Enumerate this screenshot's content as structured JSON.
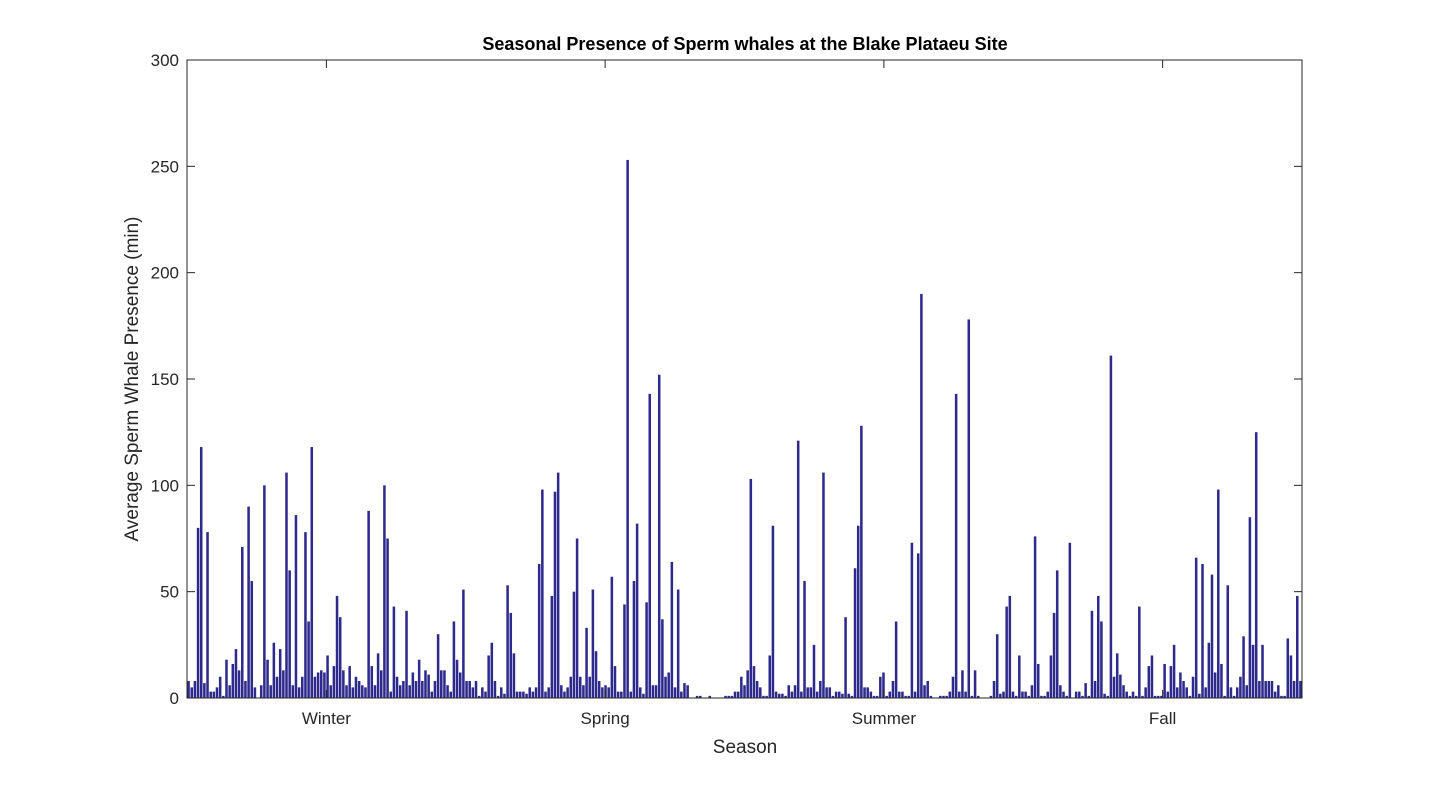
{
  "chart_data": {
    "type": "bar",
    "title": "Seasonal Presence of Sperm whales at the Blake Plataeu Site",
    "xlabel": "Season",
    "ylabel": "Average Sperm Whale Presence (min)",
    "ylim": [
      0,
      300
    ],
    "yticks": [
      0,
      50,
      100,
      150,
      200,
      250,
      300
    ],
    "xticks": [
      "Winter",
      "Spring",
      "Summer",
      "Fall"
    ],
    "grid": false,
    "legend": "none",
    "bar_color": "#2e2a8c",
    "axis_color": "#262626",
    "values": [
      8,
      5,
      8,
      80,
      118,
      7,
      78,
      3,
      3,
      5,
      10,
      1,
      18,
      6,
      16,
      23,
      13,
      71,
      8,
      90,
      55,
      5,
      0,
      6,
      100,
      18,
      6,
      26,
      10,
      23,
      13,
      106,
      60,
      6,
      86,
      5,
      10,
      78,
      36,
      118,
      10,
      12,
      13,
      12,
      20,
      6,
      15,
      48,
      38,
      13,
      6,
      15,
      5,
      10,
      8,
      6,
      5,
      88,
      15,
      6,
      21,
      13,
      100,
      75,
      3,
      43,
      10,
      6,
      8,
      41,
      6,
      12,
      8,
      18,
      8,
      13,
      11,
      3,
      8,
      30,
      13,
      13,
      6,
      3,
      36,
      18,
      12,
      51,
      8,
      8,
      5,
      8,
      1,
      5,
      3,
      20,
      26,
      8,
      1,
      5,
      2,
      53,
      40,
      21,
      3,
      3,
      3,
      2,
      5,
      3,
      5,
      63,
      98,
      3,
      5,
      48,
      97,
      106,
      6,
      3,
      5,
      10,
      50,
      75,
      10,
      6,
      33,
      10,
      51,
      22,
      8,
      5,
      6,
      5,
      57,
      15,
      3,
      3,
      44,
      253,
      3,
      55,
      82,
      5,
      2,
      45,
      143,
      6,
      6,
      152,
      37,
      10,
      12,
      64,
      5,
      51,
      3,
      7,
      6,
      0,
      0,
      1,
      1,
      0,
      0,
      1,
      0,
      0,
      0,
      0,
      1,
      1,
      1,
      3,
      3,
      10,
      6,
      13,
      103,
      15,
      8,
      5,
      1,
      1,
      20,
      81,
      3,
      2,
      2,
      1,
      6,
      3,
      6,
      121,
      3,
      55,
      5,
      5,
      25,
      3,
      8,
      106,
      5,
      5,
      1,
      3,
      3,
      2,
      38,
      2,
      1,
      61,
      81,
      128,
      5,
      5,
      3,
      1,
      1,
      10,
      12,
      1,
      3,
      8,
      36,
      3,
      3,
      1,
      1,
      73,
      3,
      68,
      190,
      6,
      8,
      1,
      0,
      0,
      1,
      1,
      1,
      3,
      10,
      143,
      3,
      13,
      3,
      178,
      1,
      13,
      1,
      0,
      0,
      0,
      1,
      8,
      30,
      2,
      3,
      43,
      48,
      3,
      1,
      20,
      3,
      3,
      1,
      6,
      76,
      16,
      1,
      1,
      3,
      20,
      40,
      60,
      6,
      3,
      1,
      73,
      0,
      3,
      3,
      1,
      7,
      1,
      41,
      8,
      48,
      36,
      2,
      1,
      161,
      10,
      21,
      11,
      6,
      3,
      1,
      3,
      1,
      43,
      1,
      5,
      15,
      20,
      1,
      1,
      1,
      16,
      3,
      15,
      25,
      5,
      12,
      8,
      5,
      1,
      10,
      66,
      2,
      63,
      5,
      26,
      58,
      12,
      98,
      16,
      1,
      53,
      5,
      1,
      5,
      10,
      29,
      6,
      85,
      25,
      125,
      8,
      25,
      8,
      8,
      8,
      3,
      6,
      1,
      1,
      28,
      20,
      8,
      48,
      8
    ]
  }
}
